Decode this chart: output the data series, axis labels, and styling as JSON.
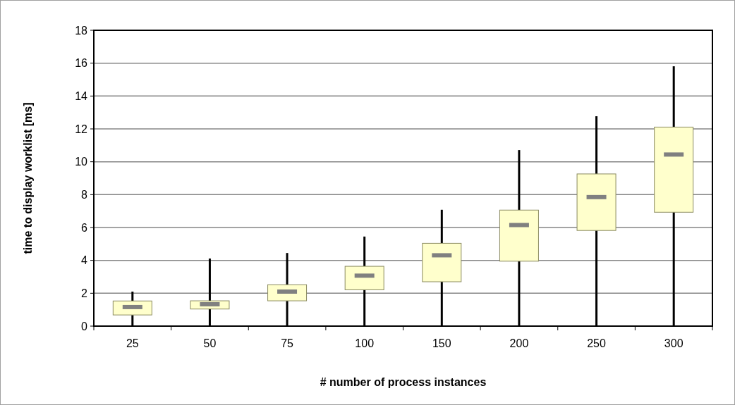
{
  "chart_data": {
    "type": "box",
    "xlabel": "# number of process instances",
    "ylabel": "time to display worklist [ms]",
    "categories": [
      "25",
      "50",
      "75",
      "100",
      "150",
      "200",
      "250",
      "300"
    ],
    "color": "#ffffcc",
    "ylim": [
      0,
      18
    ],
    "yticks": [
      0,
      2,
      4,
      6,
      8,
      10,
      12,
      14,
      16,
      18
    ],
    "grid": "y",
    "boxes": [
      {
        "low": 0,
        "q1": 0.68,
        "median": 1.16,
        "q3": 1.53,
        "high": 2.1
      },
      {
        "low": 0,
        "q1": 1.04,
        "median": 1.33,
        "q3": 1.54,
        "high": 4.11
      },
      {
        "low": 0,
        "q1": 1.54,
        "median": 2.1,
        "q3": 2.52,
        "high": 4.45
      },
      {
        "low": 0,
        "q1": 2.21,
        "median": 3.07,
        "q3": 3.64,
        "high": 5.45
      },
      {
        "low": 0,
        "q1": 2.7,
        "median": 4.31,
        "q3": 5.04,
        "high": 7.08
      },
      {
        "low": 0,
        "q1": 3.95,
        "median": 6.15,
        "q3": 7.06,
        "high": 10.71
      },
      {
        "low": 0,
        "q1": 5.82,
        "median": 7.85,
        "q3": 9.26,
        "high": 12.77
      },
      {
        "low": 0,
        "q1": 6.93,
        "median": 10.44,
        "q3": 12.11,
        "high": 15.81
      }
    ]
  }
}
